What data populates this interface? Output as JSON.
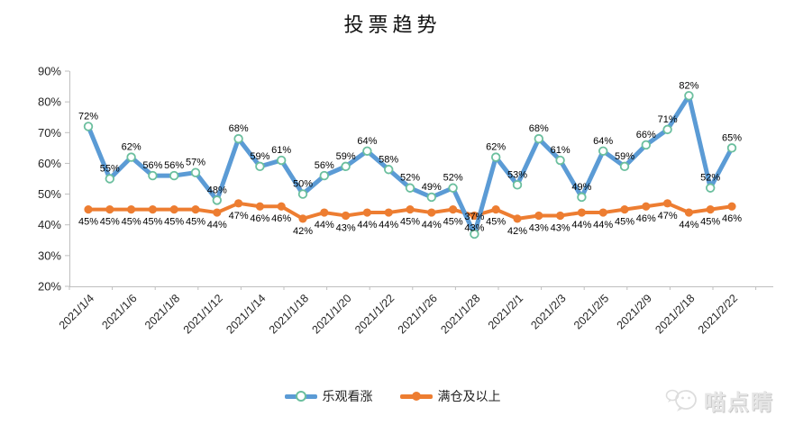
{
  "title": "投票趋势",
  "chart_data": {
    "type": "line",
    "title": "投票趋势",
    "x_axis": {
      "tick_labels": [
        "2021/1/4",
        "2021/1/6",
        "2021/1/8",
        "2021/1/12",
        "2021/1/14",
        "2021/1/18",
        "2021/1/20",
        "2021/1/22",
        "2021/1/26",
        "2021/1/28",
        "2021/2/1",
        "2021/2/3",
        "2021/2/5",
        "2021/2/9",
        "2021/2/18",
        "2021/2/22"
      ],
      "label_every_n_points": 2
    },
    "y_axis": {
      "tick_labels": [
        "20%",
        "30%",
        "40%",
        "50%",
        "60%",
        "70%",
        "80%",
        "90%"
      ],
      "min": 20,
      "max": 90
    },
    "ylim": [
      20,
      90
    ],
    "grid": false,
    "legend_position": "bottom",
    "data_label_suffix": "%",
    "series": [
      {
        "name": "乐观看涨",
        "color": "#5B9BD5",
        "marker": "open-circle",
        "marker_fill": "#FFFFFF",
        "marker_stroke": "#6BBF9E",
        "values": [
          72,
          55,
          62,
          56,
          56,
          57,
          48,
          68,
          59,
          61,
          50,
          56,
          59,
          64,
          58,
          52,
          49,
          52,
          37,
          62,
          53,
          68,
          61,
          49,
          64,
          59,
          66,
          71,
          82,
          52,
          65
        ]
      },
      {
        "name": "满仓及以上",
        "color": "#ED7D31",
        "marker": "filled-circle",
        "marker_fill": "#ED7D31",
        "marker_stroke": "#ED7D31",
        "values": [
          45,
          45,
          45,
          45,
          45,
          45,
          44,
          47,
          46,
          46,
          42,
          44,
          43,
          44,
          44,
          45,
          44,
          45,
          43,
          45,
          42,
          43,
          43,
          44,
          44,
          45,
          46,
          47,
          44,
          45,
          46
        ]
      }
    ],
    "colors": {
      "axis_line": "#BFBFBF",
      "axis_text": "#262626",
      "data_label_text": "#000000"
    }
  },
  "watermark": {
    "text": "喵点睛",
    "icon": "wechat-chat-bubbles-icon"
  }
}
